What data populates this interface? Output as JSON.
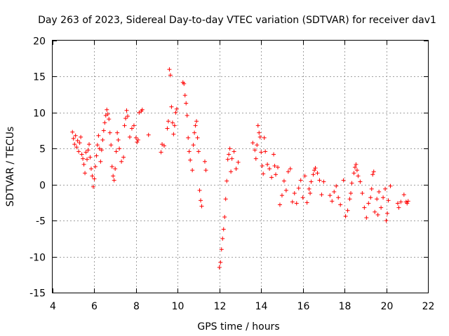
{
  "chart_data": {
    "type": "scatter",
    "title": "Day 263 of 2023, Sidereal Day-to-day VTEC variation (SDTVAR) for receiver dav1",
    "xlabel": "GPS time / hours",
    "ylabel": "SDTVAR / TECUs",
    "xlim": [
      4,
      22
    ],
    "ylim": [
      -15,
      20
    ],
    "xticks": [
      "4",
      "6",
      "8",
      "10",
      "12",
      "14",
      "16",
      "18",
      "20",
      "22"
    ],
    "yticks": [
      "20",
      "15",
      "10",
      "5",
      "0",
      "-5",
      "-10",
      "-15"
    ],
    "grid": true,
    "marker": "+",
    "color": "#ff0000",
    "series": [
      {
        "name": "SDTVAR",
        "points": [
          [
            4.95,
            7.3
          ],
          [
            5.0,
            6.4
          ],
          [
            5.05,
            5.6
          ],
          [
            5.1,
            6.8
          ],
          [
            5.15,
            5.2
          ],
          [
            5.2,
            6.1
          ],
          [
            5.25,
            4.6
          ],
          [
            5.3,
            5.8
          ],
          [
            5.35,
            6.6
          ],
          [
            5.4,
            4.2
          ],
          [
            5.45,
            3.6
          ],
          [
            5.5,
            2.8
          ],
          [
            5.55,
            1.6
          ],
          [
            5.6,
            4.5
          ],
          [
            5.65,
            3.5
          ],
          [
            5.7,
            4.8
          ],
          [
            5.75,
            5.6
          ],
          [
            5.8,
            3.8
          ],
          [
            5.85,
            2.2
          ],
          [
            5.9,
            1.2
          ],
          [
            5.95,
            -0.3
          ],
          [
            6.0,
            0.8
          ],
          [
            6.05,
            2.5
          ],
          [
            6.1,
            4.0
          ],
          [
            6.15,
            5.5
          ],
          [
            6.2,
            6.8
          ],
          [
            6.25,
            5.0
          ],
          [
            6.3,
            3.2
          ],
          [
            6.35,
            4.8
          ],
          [
            6.4,
            6.2
          ],
          [
            6.45,
            7.5
          ],
          [
            6.5,
            8.6
          ],
          [
            6.55,
            9.6
          ],
          [
            6.6,
            10.4
          ],
          [
            6.65,
            9.8
          ],
          [
            6.7,
            9.1
          ],
          [
            6.75,
            7.2
          ],
          [
            6.8,
            5.5
          ],
          [
            6.85,
            2.5
          ],
          [
            6.9,
            1.2
          ],
          [
            6.95,
            0.6
          ],
          [
            7.0,
            2.2
          ],
          [
            7.05,
            4.6
          ],
          [
            7.1,
            7.2
          ],
          [
            7.15,
            6.2
          ],
          [
            7.2,
            5.0
          ],
          [
            7.3,
            3.2
          ],
          [
            7.4,
            3.8
          ],
          [
            7.45,
            8.2
          ],
          [
            7.5,
            9.2
          ],
          [
            7.55,
            10.3
          ],
          [
            7.6,
            9.5
          ],
          [
            7.7,
            6.6
          ],
          [
            7.8,
            7.8
          ],
          [
            7.9,
            8.2
          ],
          [
            8.0,
            6.5
          ],
          [
            8.05,
            5.9
          ],
          [
            8.1,
            6.2
          ],
          [
            8.15,
            10.0
          ],
          [
            8.25,
            10.2
          ],
          [
            8.3,
            10.4
          ],
          [
            8.6,
            6.9
          ],
          [
            9.2,
            4.5
          ],
          [
            9.25,
            5.6
          ],
          [
            9.35,
            5.4
          ],
          [
            9.5,
            7.8
          ],
          [
            9.55,
            8.8
          ],
          [
            9.6,
            16.0
          ],
          [
            9.65,
            15.2
          ],
          [
            9.7,
            10.8
          ],
          [
            9.75,
            8.6
          ],
          [
            9.8,
            7.0
          ],
          [
            9.85,
            8.2
          ],
          [
            9.9,
            10.0
          ],
          [
            9.95,
            10.5
          ],
          [
            10.25,
            14.2
          ],
          [
            10.3,
            14.0
          ],
          [
            10.35,
            12.4
          ],
          [
            10.4,
            11.3
          ],
          [
            10.45,
            9.6
          ],
          [
            10.5,
            6.5
          ],
          [
            10.55,
            4.6
          ],
          [
            10.6,
            3.4
          ],
          [
            10.7,
            2.0
          ],
          [
            10.75,
            5.5
          ],
          [
            10.8,
            7.2
          ],
          [
            10.85,
            8.2
          ],
          [
            10.9,
            8.8
          ],
          [
            10.95,
            6.5
          ],
          [
            11.0,
            4.6
          ],
          [
            11.05,
            -0.8
          ],
          [
            11.1,
            -2.2
          ],
          [
            11.15,
            -3.0
          ],
          [
            11.3,
            3.2
          ],
          [
            11.35,
            2.0
          ],
          [
            12.0,
            -11.5
          ],
          [
            12.05,
            -10.8
          ],
          [
            12.1,
            -9.0
          ],
          [
            12.15,
            -7.5
          ],
          [
            12.2,
            -6.2
          ],
          [
            12.25,
            -4.5
          ],
          [
            12.3,
            -2.0
          ],
          [
            12.35,
            0.5
          ],
          [
            12.4,
            3.5
          ],
          [
            12.45,
            4.2
          ],
          [
            12.5,
            5.0
          ],
          [
            12.55,
            1.8
          ],
          [
            12.6,
            3.6
          ],
          [
            12.7,
            4.6
          ],
          [
            12.8,
            2.2
          ],
          [
            12.9,
            3.1
          ],
          [
            13.6,
            5.8
          ],
          [
            13.7,
            4.8
          ],
          [
            13.75,
            3.6
          ],
          [
            13.8,
            5.5
          ],
          [
            13.85,
            8.2
          ],
          [
            13.9,
            7.2
          ],
          [
            13.95,
            6.6
          ],
          [
            14.0,
            4.5
          ],
          [
            14.05,
            2.6
          ],
          [
            14.1,
            1.5
          ],
          [
            14.15,
            6.5
          ],
          [
            14.2,
            4.6
          ],
          [
            14.3,
            2.8
          ],
          [
            14.4,
            2.2
          ],
          [
            14.5,
            1.0
          ],
          [
            14.6,
            4.2
          ],
          [
            14.65,
            2.6
          ],
          [
            14.7,
            1.4
          ],
          [
            14.8,
            2.4
          ],
          [
            14.9,
            -2.8
          ],
          [
            15.0,
            -1.5
          ],
          [
            15.1,
            0.5
          ],
          [
            15.2,
            -0.8
          ],
          [
            15.3,
            1.8
          ],
          [
            15.4,
            2.2
          ],
          [
            15.5,
            -2.4
          ],
          [
            15.6,
            -1.2
          ],
          [
            15.7,
            -2.6
          ],
          [
            15.8,
            -0.5
          ],
          [
            15.9,
            0.6
          ],
          [
            16.0,
            -1.8
          ],
          [
            16.1,
            1.2
          ],
          [
            16.2,
            -2.5
          ],
          [
            16.3,
            -0.6
          ],
          [
            16.35,
            -1.2
          ],
          [
            16.4,
            0.4
          ],
          [
            16.5,
            1.4
          ],
          [
            16.55,
            2.0
          ],
          [
            16.6,
            2.3
          ],
          [
            16.7,
            1.6
          ],
          [
            16.8,
            0.6
          ],
          [
            16.9,
            -1.4
          ],
          [
            17.0,
            0.4
          ],
          [
            17.3,
            -1.5
          ],
          [
            17.4,
            -2.3
          ],
          [
            17.5,
            -1.0
          ],
          [
            17.6,
            -0.2
          ],
          [
            17.7,
            -1.8
          ],
          [
            17.8,
            -2.8
          ],
          [
            17.95,
            0.6
          ],
          [
            18.05,
            -4.4
          ],
          [
            18.15,
            -3.6
          ],
          [
            18.25,
            -2.0
          ],
          [
            18.3,
            -1.2
          ],
          [
            18.35,
            0.2
          ],
          [
            18.45,
            1.6
          ],
          [
            18.5,
            2.4
          ],
          [
            18.55,
            2.8
          ],
          [
            18.6,
            2.0
          ],
          [
            18.65,
            1.2
          ],
          [
            18.75,
            0.4
          ],
          [
            18.85,
            -1.2
          ],
          [
            18.95,
            -3.2
          ],
          [
            19.05,
            -4.6
          ],
          [
            19.15,
            -2.6
          ],
          [
            19.25,
            -1.8
          ],
          [
            19.3,
            -0.6
          ],
          [
            19.35,
            1.4
          ],
          [
            19.4,
            1.8
          ],
          [
            19.45,
            -3.8
          ],
          [
            19.55,
            -2.0
          ],
          [
            19.6,
            -4.2
          ],
          [
            19.65,
            -1.0
          ],
          [
            19.75,
            -3.2
          ],
          [
            19.85,
            -1.8
          ],
          [
            19.95,
            -0.6
          ],
          [
            20.0,
            -5.0
          ],
          [
            20.05,
            -4.0
          ],
          [
            20.1,
            -2.2
          ],
          [
            20.2,
            -0.2
          ],
          [
            20.55,
            -2.6
          ],
          [
            20.6,
            -3.2
          ],
          [
            20.7,
            -2.4
          ],
          [
            20.85,
            -1.4
          ],
          [
            20.95,
            -2.4
          ],
          [
            21.0,
            -2.6
          ],
          [
            21.05,
            -2.3
          ]
        ]
      }
    ]
  }
}
